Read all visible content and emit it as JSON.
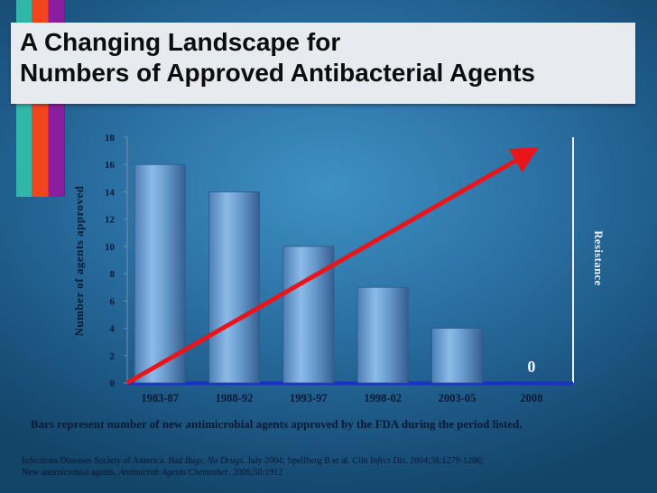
{
  "header": {
    "title_line1": "A Changing Landscape for",
    "title_line2": "Numbers of Approved Antibacterial Agents",
    "stripe_colors": [
      "#2eb8a8",
      "#f2451c",
      "#8b1e9e"
    ]
  },
  "chart_data": {
    "type": "bar",
    "categories": [
      "1983-87",
      "1988-92",
      "1993-97",
      "1998-02",
      "2003-05",
      "2008"
    ],
    "values": [
      16,
      14,
      10,
      7,
      4,
      0
    ],
    "data_labels": [
      "",
      "",
      "",
      "",
      "",
      "0"
    ],
    "ylabel": "Number of agents approved",
    "secondary_axis_label": "Resistance",
    "ylim": [
      0,
      18
    ],
    "yticks": [
      "0",
      "2",
      "4",
      "6",
      "8",
      "10",
      "12",
      "14",
      "16",
      "18"
    ],
    "trend_arrow": {
      "color": "#e8161b",
      "from": [
        "1983-87",
        0
      ],
      "to": [
        "2008",
        17
      ]
    },
    "bar_color": "#6a9dcf",
    "baseline_color": "#1a2fd0",
    "grid": false
  },
  "caption": "Bars represent number of new antimicrobial agents approved by the FDA during the period listed.",
  "references": {
    "line1": {
      "a": "Infectious Diseases Society of America. ",
      "b": "Bad Bugs, No Drugs",
      "c": ". July 2004; Spellberg B et al. ",
      "d": "Clin Infect Dis",
      "e": ". 2004;38:1279-1286;"
    },
    "line2": {
      "a": "New antimicrobial agents.  ",
      "b": "Antimicrob Agents Chemother",
      "c": ". 2006;50:1912"
    }
  }
}
